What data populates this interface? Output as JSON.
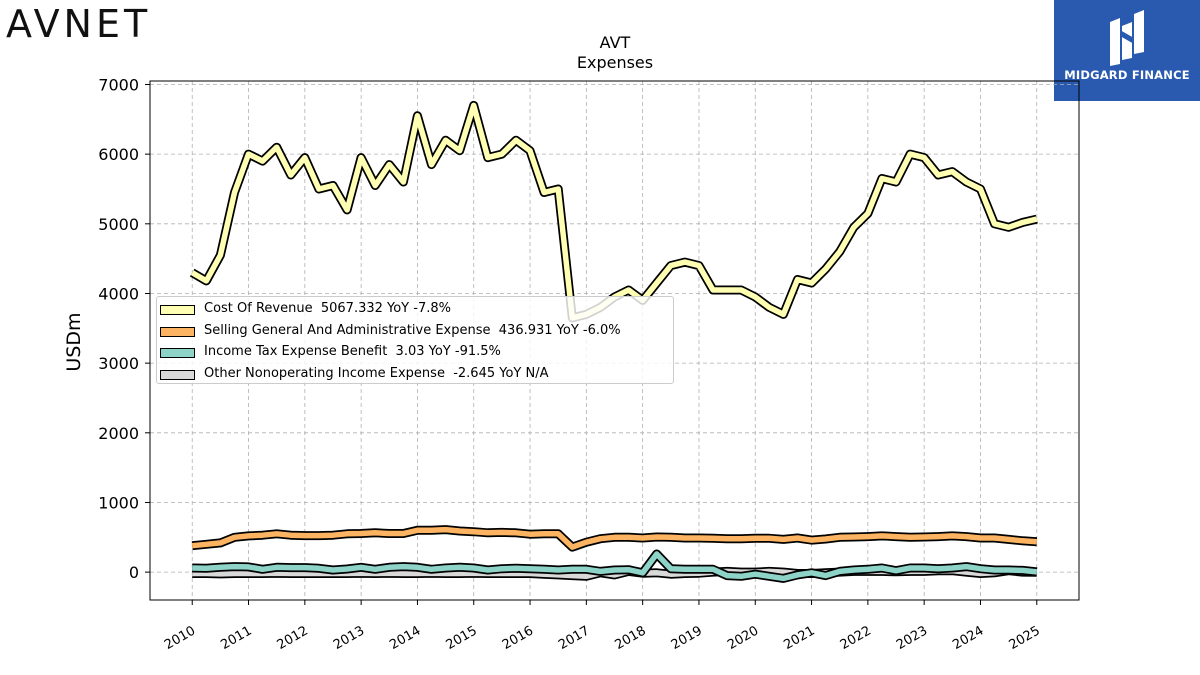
{
  "brand": {
    "left_logo": "AVNET",
    "right_logo": "MIDGARD FINANCE"
  },
  "chart_data": {
    "type": "line",
    "title": "AVT",
    "subtitle": "Expenses",
    "ylabel": "USDm",
    "xlabel": "",
    "ylim": [
      -400,
      7050
    ],
    "xlim": [
      2009.25,
      2025.75
    ],
    "yticks": [
      0,
      1000,
      2000,
      3000,
      4000,
      5000,
      6000,
      7000
    ],
    "xticks": [
      "2010",
      "2011",
      "2012",
      "2013",
      "2014",
      "2015",
      "2016",
      "2017",
      "2018",
      "2019",
      "2020",
      "2021",
      "2022",
      "2023",
      "2024",
      "2025"
    ],
    "grid": true,
    "legend_position": "center-left",
    "series": [
      {
        "name": "Cost Of Revenue",
        "legend": "Cost Of Revenue  5067.332 YoY -7.8%",
        "color": "#ffffb3",
        "x": [
          2010.0,
          2010.25,
          2010.5,
          2010.75,
          2011.0,
          2011.25,
          2011.5,
          2011.75,
          2012.0,
          2012.25,
          2012.5,
          2012.75,
          2013.0,
          2013.25,
          2013.5,
          2013.75,
          2014.0,
          2014.25,
          2014.5,
          2014.75,
          2015.0,
          2015.25,
          2015.5,
          2015.75,
          2016.0,
          2016.25,
          2016.5,
          2016.75,
          2017.0,
          2017.25,
          2017.5,
          2017.75,
          2018.0,
          2018.25,
          2018.5,
          2018.75,
          2019.0,
          2019.25,
          2019.5,
          2019.75,
          2020.0,
          2020.25,
          2020.5,
          2020.75,
          2021.0,
          2021.25,
          2021.5,
          2021.75,
          2022.0,
          2022.25,
          2022.5,
          2022.75,
          2023.0,
          2023.25,
          2023.5,
          2023.75,
          2024.0,
          2024.25,
          2024.5,
          2024.75,
          2025.0
        ],
        "values": [
          4300,
          4180,
          4550,
          5450,
          6000,
          5900,
          6100,
          5700,
          5950,
          5500,
          5550,
          5200,
          5950,
          5550,
          5850,
          5600,
          6550,
          5850,
          6200,
          6050,
          6700,
          5950,
          6000,
          6200,
          6050,
          5450,
          5500,
          3650,
          3700,
          3800,
          3950,
          4050,
          3900,
          4150,
          4400,
          4450,
          4400,
          4050,
          4050,
          4050,
          3950,
          3800,
          3700,
          4200,
          4150,
          4350,
          4600,
          4950,
          5150,
          5650,
          5600,
          6000,
          5950,
          5700,
          5750,
          5600,
          5500,
          5000,
          4950,
          5020,
          5067.332
        ]
      },
      {
        "name": "Selling General And Administrative Expense",
        "legend": "Selling General And Administrative Expense  436.931 YoY -6.0%",
        "color": "#fdb462",
        "x": [
          2010.0,
          2010.25,
          2010.5,
          2010.75,
          2011.0,
          2011.25,
          2011.5,
          2011.75,
          2012.0,
          2012.25,
          2012.5,
          2012.75,
          2013.0,
          2013.25,
          2013.5,
          2013.75,
          2014.0,
          2014.25,
          2014.5,
          2014.75,
          2015.0,
          2015.25,
          2015.5,
          2015.75,
          2016.0,
          2016.25,
          2016.5,
          2016.75,
          2017.0,
          2017.25,
          2017.5,
          2017.75,
          2018.0,
          2018.25,
          2018.5,
          2018.75,
          2019.0,
          2019.25,
          2019.5,
          2019.75,
          2020.0,
          2020.25,
          2020.5,
          2020.75,
          2021.0,
          2021.25,
          2021.5,
          2021.75,
          2022.0,
          2022.25,
          2022.5,
          2022.75,
          2023.0,
          2023.25,
          2023.5,
          2023.75,
          2024.0,
          2024.25,
          2024.5,
          2024.75,
          2025.0
        ],
        "values": [
          380,
          400,
          420,
          500,
          520,
          530,
          550,
          530,
          525,
          525,
          530,
          550,
          555,
          565,
          555,
          555,
          600,
          600,
          610,
          590,
          580,
          565,
          570,
          565,
          545,
          550,
          550,
          360,
          430,
          480,
          500,
          500,
          490,
          505,
          500,
          490,
          490,
          485,
          480,
          480,
          485,
          485,
          470,
          490,
          460,
          475,
          500,
          505,
          510,
          520,
          510,
          500,
          505,
          510,
          520,
          510,
          490,
          490,
          470,
          450,
          437
        ]
      },
      {
        "name": "Income Tax Expense Benefit",
        "legend": "Income Tax Expense Benefit  3.03 YoY -91.5%",
        "color": "#8dd3c7",
        "x": [
          2010.0,
          2010.25,
          2010.5,
          2010.75,
          2011.0,
          2011.25,
          2011.5,
          2011.75,
          2012.0,
          2012.25,
          2012.5,
          2012.75,
          2013.0,
          2013.25,
          2013.5,
          2013.75,
          2014.0,
          2014.25,
          2014.5,
          2014.75,
          2015.0,
          2015.25,
          2015.5,
          2015.75,
          2016.0,
          2016.25,
          2016.5,
          2016.75,
          2017.0,
          2017.25,
          2017.5,
          2017.75,
          2018.0,
          2018.25,
          2018.5,
          2018.75,
          2019.0,
          2019.25,
          2019.5,
          2019.75,
          2020.0,
          2020.25,
          2020.5,
          2020.75,
          2021.0,
          2021.25,
          2021.5,
          2021.75,
          2022.0,
          2022.25,
          2022.5,
          2022.75,
          2023.0,
          2023.25,
          2023.5,
          2023.75,
          2024.0,
          2024.25,
          2024.5,
          2024.75,
          2025.0
        ],
        "values": [
          60,
          55,
          70,
          80,
          75,
          40,
          70,
          65,
          65,
          55,
          30,
          45,
          70,
          40,
          70,
          80,
          70,
          40,
          60,
          70,
          60,
          30,
          50,
          55,
          50,
          40,
          30,
          40,
          40,
          10,
          30,
          35,
          -10,
          260,
          50,
          40,
          40,
          40,
          -50,
          -60,
          -30,
          -60,
          -90,
          -40,
          -10,
          -50,
          10,
          30,
          40,
          60,
          20,
          60,
          60,
          50,
          60,
          80,
          50,
          30,
          30,
          25,
          3
        ]
      },
      {
        "name": "Other Nonoperating Income Expense",
        "legend": "Other Nonoperating Income Expense  -2.645 YoY N/A",
        "color": "#d9d9d9",
        "x": [
          2010.0,
          2010.25,
          2010.5,
          2010.75,
          2011.0,
          2011.25,
          2011.5,
          2011.75,
          2012.0,
          2012.25,
          2012.5,
          2012.75,
          2013.0,
          2013.25,
          2013.5,
          2013.75,
          2014.0,
          2014.25,
          2014.5,
          2014.75,
          2015.0,
          2015.25,
          2015.5,
          2015.75,
          2016.0,
          2016.25,
          2016.5,
          2016.75,
          2017.0,
          2017.25,
          2017.5,
          2017.75,
          2018.0,
          2018.25,
          2018.5,
          2018.75,
          2019.0,
          2019.25,
          2019.5,
          2019.75,
          2020.0,
          2020.25,
          2020.5,
          2020.75,
          2021.0,
          2021.25,
          2021.5,
          2021.75,
          2022.0,
          2022.25,
          2022.5,
          2022.75,
          2023.0,
          2023.25,
          2023.5,
          2023.75,
          2024.0,
          2024.25,
          2024.5,
          2024.75,
          2025.0
        ],
        "values": [
          -20,
          -20,
          -25,
          -20,
          -20,
          -20,
          -15,
          -20,
          -20,
          -20,
          -20,
          -20,
          -15,
          -20,
          -15,
          -20,
          -20,
          -15,
          -20,
          -20,
          -15,
          -20,
          -20,
          -20,
          -20,
          -30,
          -40,
          -50,
          -60,
          -10,
          -40,
          10,
          -15,
          -10,
          -30,
          -20,
          -15,
          0,
          10,
          0,
          0,
          10,
          0,
          -20,
          -20,
          -10,
          0,
          10,
          10,
          10,
          5,
          10,
          10,
          20,
          20,
          0,
          -20,
          -10,
          20,
          0,
          -2.645
        ]
      }
    ]
  }
}
